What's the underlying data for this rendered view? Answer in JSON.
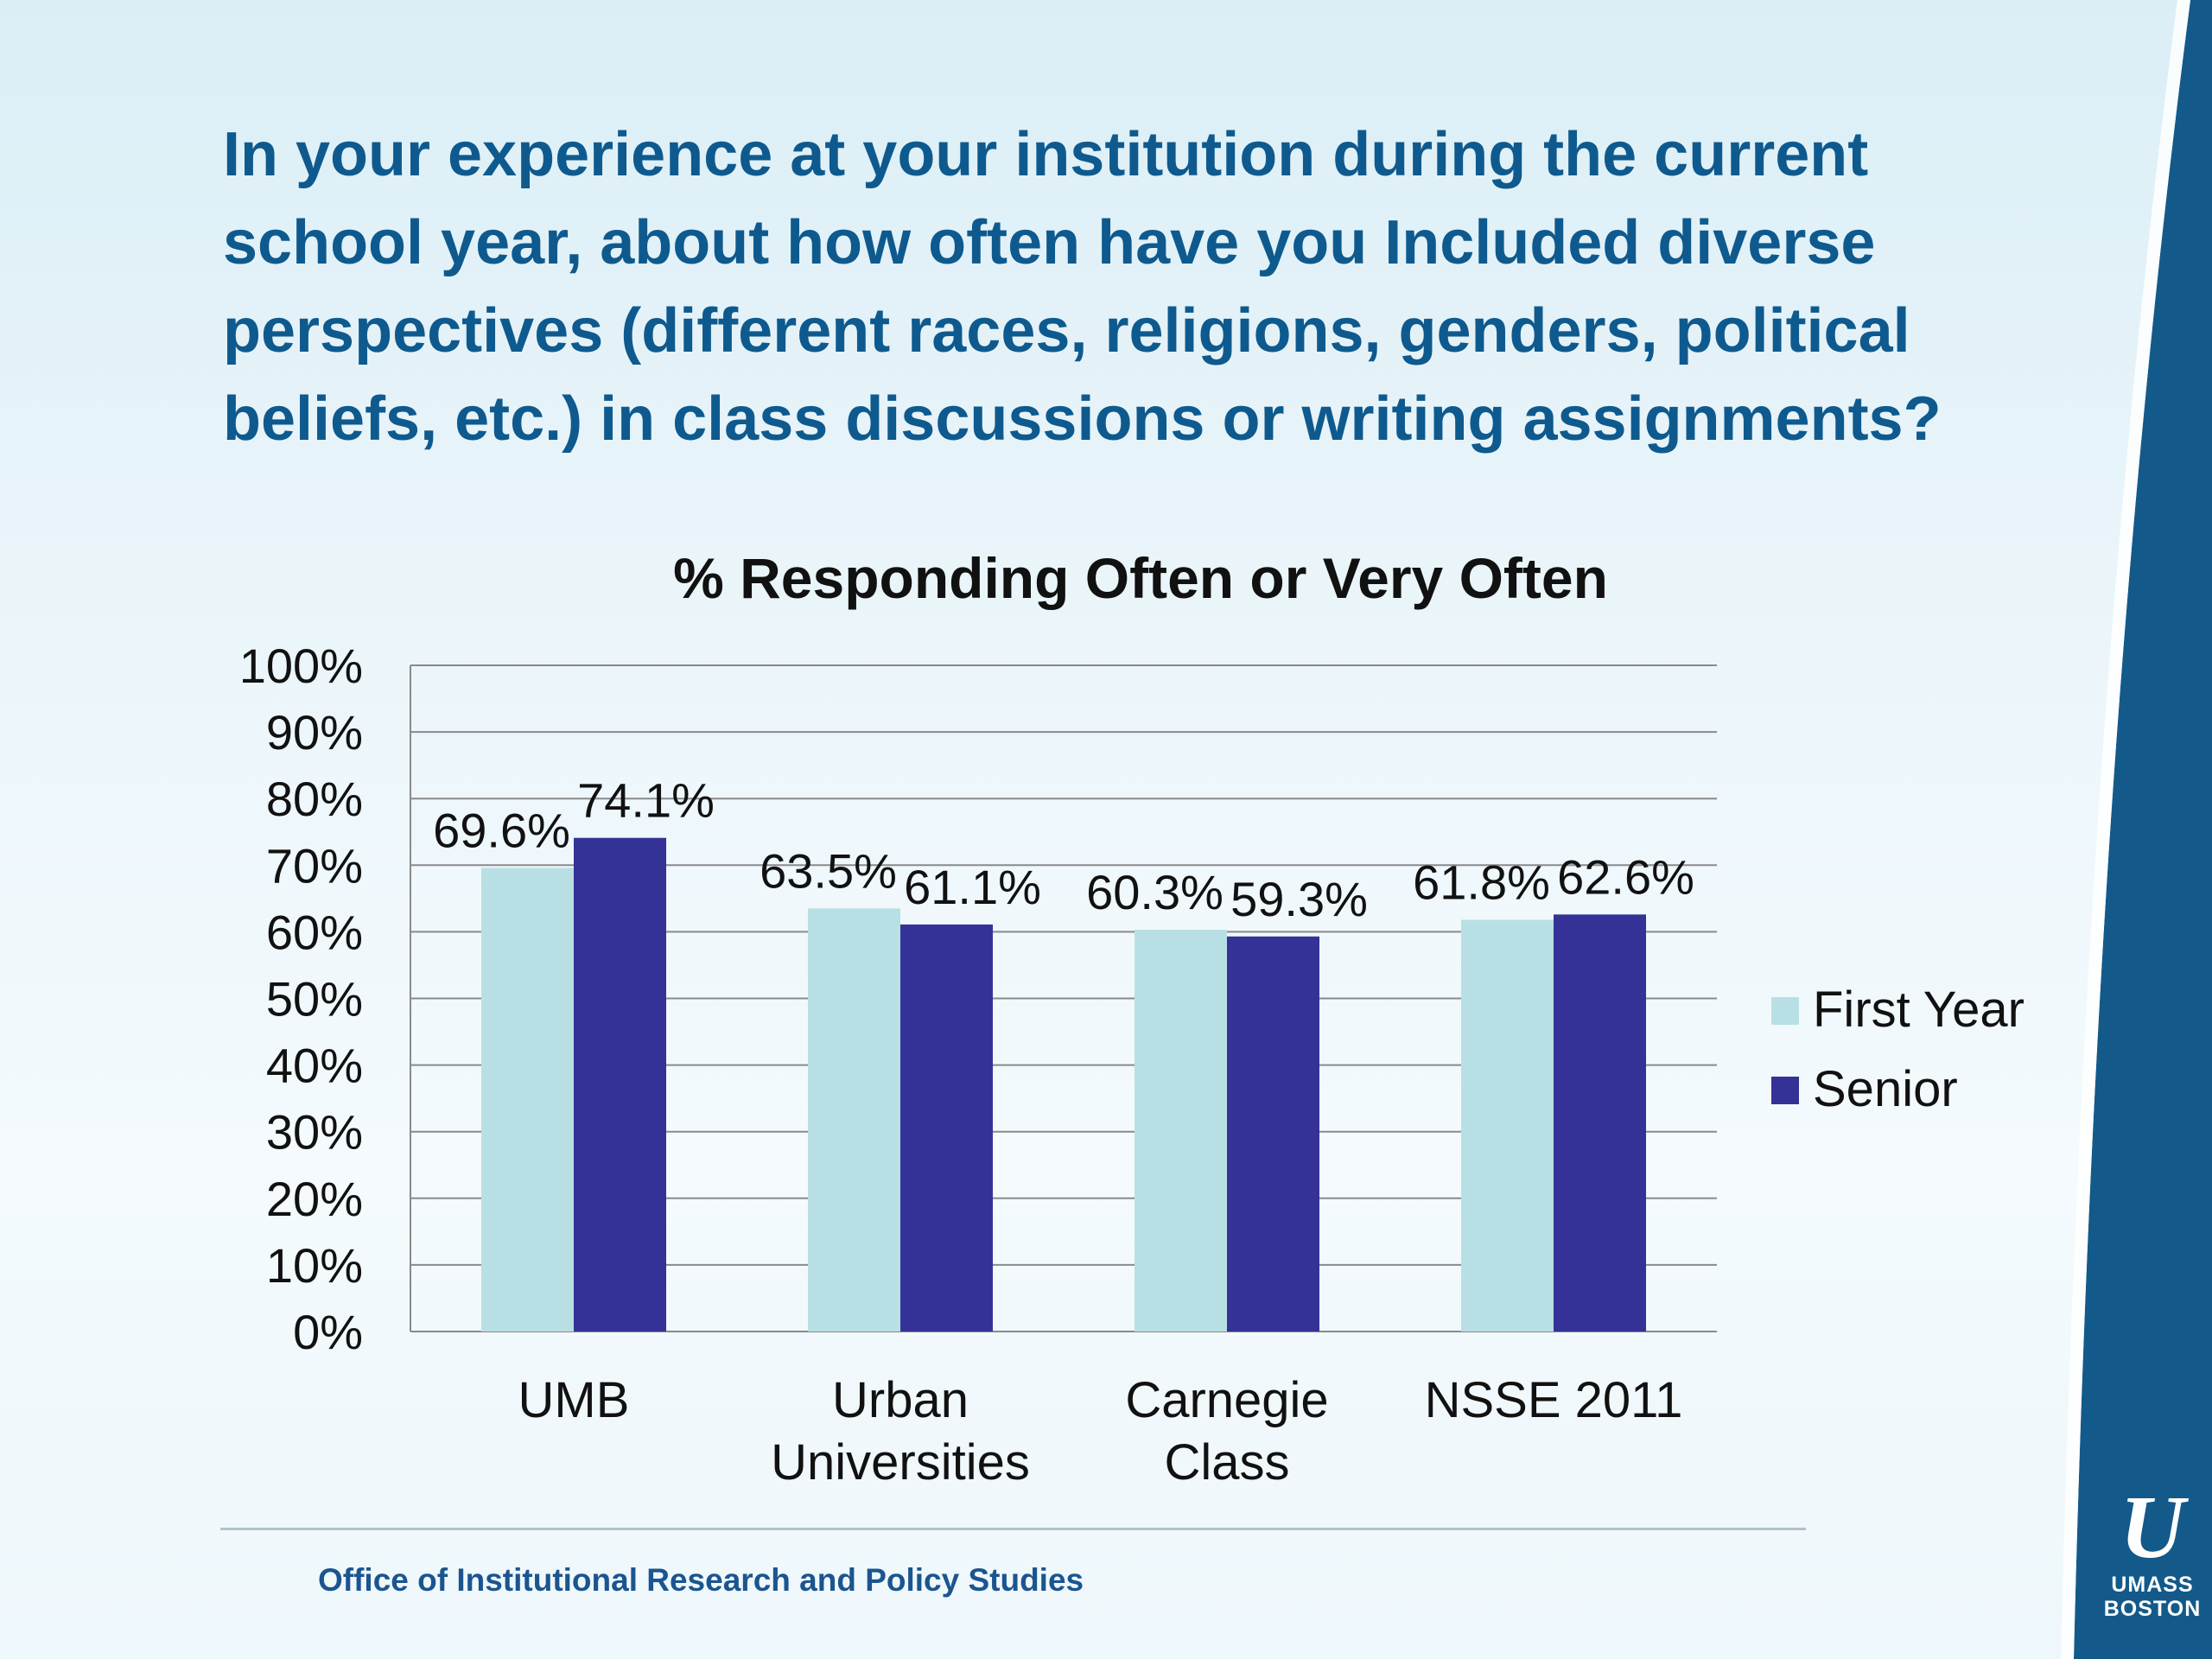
{
  "slide": {
    "title": "In your experience at your institution during the current school year, about how often have you Included diverse perspectives (different races, religions, genders, political beliefs, etc.) in class discussions or writing assignments?",
    "footer": "Office of Institutional Research and Policy Studies",
    "logo_text": "UMASS BOSTON",
    "logo_mark": "U"
  },
  "colors": {
    "first_year": "#b8e0e4",
    "senior": "#343296",
    "title": "#0e5a8e",
    "band": "#135a8a"
  },
  "chart_data": {
    "type": "bar",
    "title": "% Responding Often or Very Often",
    "categories": [
      [
        "UMB"
      ],
      [
        "Urban",
        "Universities"
      ],
      [
        "Carnegie",
        "Class"
      ],
      [
        "NSSE 2011"
      ]
    ],
    "series": [
      {
        "name": "First Year",
        "values": [
          69.6,
          63.5,
          60.3,
          61.8
        ],
        "labels": [
          "69.6%",
          "63.5%",
          "60.3%",
          "61.8%"
        ]
      },
      {
        "name": "Senior",
        "values": [
          74.1,
          61.1,
          59.3,
          62.6
        ],
        "labels": [
          "74.1%",
          "61.1%",
          "59.3%",
          "62.6%"
        ]
      }
    ],
    "yticks": [
      "0%",
      "10%",
      "20%",
      "30%",
      "40%",
      "50%",
      "60%",
      "70%",
      "80%",
      "90%",
      "100%"
    ],
    "ylim": [
      0,
      100
    ],
    "grid": true,
    "legend": "right"
  }
}
